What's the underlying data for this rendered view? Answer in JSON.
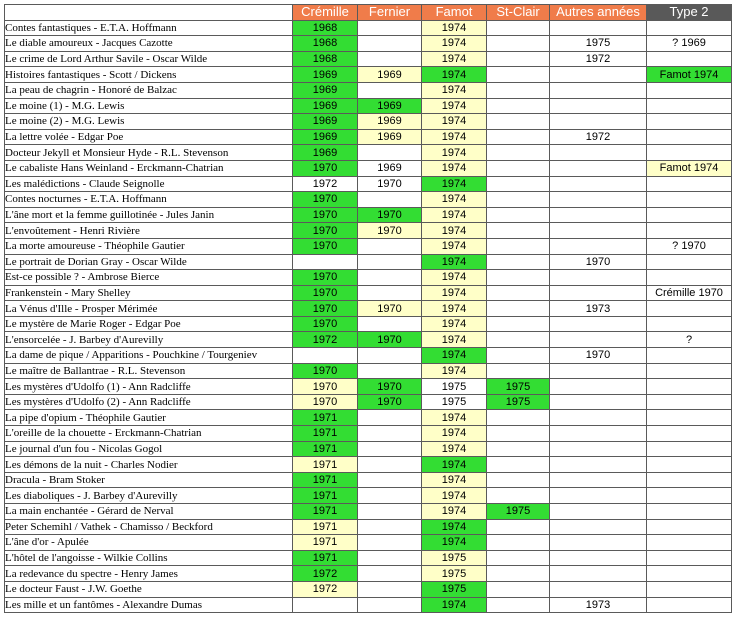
{
  "colors": {
    "header_orange": "#f07c4a",
    "header_dark": "#595959",
    "green": "#33dd33",
    "yellow": "#ffffc8",
    "white": "#ffffff"
  },
  "columns": [
    {
      "key": "cremille",
      "label": "Crémille",
      "header_color": "header_orange"
    },
    {
      "key": "fernier",
      "label": "Fernier",
      "header_color": "header_orange"
    },
    {
      "key": "famot",
      "label": "Famot",
      "header_color": "header_orange"
    },
    {
      "key": "stclair",
      "label": "St-Clair",
      "header_color": "header_orange"
    },
    {
      "key": "autres",
      "label": "Autres années",
      "header_color": "header_orange"
    },
    {
      "key": "type2",
      "label": "Type 2",
      "header_color": "header_dark"
    }
  ],
  "rows": [
    {
      "title": "Contes fantastiques - E.T.A. Hoffmann",
      "cells": [
        [
          "1968",
          "green"
        ],
        [
          "",
          "white"
        ],
        [
          "1974",
          "yellow"
        ],
        [
          "",
          "white"
        ],
        [
          "",
          "white"
        ],
        [
          "",
          "white"
        ]
      ]
    },
    {
      "title": "Le diable amoureux - Jacques Cazotte",
      "cells": [
        [
          "1968",
          "green"
        ],
        [
          "",
          "white"
        ],
        [
          "1974",
          "yellow"
        ],
        [
          "",
          "white"
        ],
        [
          "1975",
          "white"
        ],
        [
          "? 1969",
          "white"
        ]
      ]
    },
    {
      "title": "Le crime de Lord Arthur Savile - Oscar Wilde",
      "cells": [
        [
          "1968",
          "green"
        ],
        [
          "",
          "white"
        ],
        [
          "1974",
          "yellow"
        ],
        [
          "",
          "white"
        ],
        [
          "1972",
          "white"
        ],
        [
          "",
          "white"
        ]
      ]
    },
    {
      "title": "Histoires fantastiques - Scott / Dickens",
      "cells": [
        [
          "1969",
          "green"
        ],
        [
          "1969",
          "yellow"
        ],
        [
          "1974",
          "green"
        ],
        [
          "",
          "white"
        ],
        [
          "",
          "white"
        ],
        [
          "Famot 1974",
          "green"
        ]
      ]
    },
    {
      "title": "La peau de chagrin - Honoré de Balzac",
      "cells": [
        [
          "1969",
          "green"
        ],
        [
          "",
          "white"
        ],
        [
          "1974",
          "yellow"
        ],
        [
          "",
          "white"
        ],
        [
          "",
          "white"
        ],
        [
          "",
          "white"
        ]
      ]
    },
    {
      "title": "Le moine (1) - M.G. Lewis",
      "cells": [
        [
          "1969",
          "green"
        ],
        [
          "1969",
          "green"
        ],
        [
          "1974",
          "yellow"
        ],
        [
          "",
          "white"
        ],
        [
          "",
          "white"
        ],
        [
          "",
          "white"
        ]
      ]
    },
    {
      "title": "Le moine (2) - M.G. Lewis",
      "cells": [
        [
          "1969",
          "green"
        ],
        [
          "1969",
          "yellow"
        ],
        [
          "1974",
          "yellow"
        ],
        [
          "",
          "white"
        ],
        [
          "",
          "white"
        ],
        [
          "",
          "white"
        ]
      ]
    },
    {
      "title": "La lettre volée - Edgar Poe",
      "cells": [
        [
          "1969",
          "green"
        ],
        [
          "1969",
          "yellow"
        ],
        [
          "1974",
          "yellow"
        ],
        [
          "",
          "white"
        ],
        [
          "1972",
          "white"
        ],
        [
          "",
          "white"
        ]
      ]
    },
    {
      "title": "Docteur Jekyll et Monsieur Hyde - R.L. Stevenson",
      "cells": [
        [
          "1969",
          "green"
        ],
        [
          "",
          "white"
        ],
        [
          "1974",
          "yellow"
        ],
        [
          "",
          "white"
        ],
        [
          "",
          "white"
        ],
        [
          "",
          "white"
        ]
      ]
    },
    {
      "title": "Le cabaliste Hans Weinland - Erckmann-Chatrian",
      "cells": [
        [
          "1970",
          "green"
        ],
        [
          "1969",
          "white"
        ],
        [
          "1974",
          "yellow"
        ],
        [
          "",
          "white"
        ],
        [
          "",
          "white"
        ],
        [
          "Famot 1974",
          "yellow"
        ]
      ]
    },
    {
      "title": "Les malédictions - Claude Seignolle",
      "cells": [
        [
          "1972",
          "white"
        ],
        [
          "1970",
          "white"
        ],
        [
          "1974",
          "green"
        ],
        [
          "",
          "white"
        ],
        [
          "",
          "white"
        ],
        [
          "",
          "white"
        ]
      ]
    },
    {
      "title": "Contes nocturnes - E.T.A. Hoffmann",
      "cells": [
        [
          "1970",
          "green"
        ],
        [
          "",
          "white"
        ],
        [
          "1974",
          "yellow"
        ],
        [
          "",
          "white"
        ],
        [
          "",
          "white"
        ],
        [
          "",
          "white"
        ]
      ]
    },
    {
      "title": "L'âne mort et la femme guillotinée - Jules Janin",
      "cells": [
        [
          "1970",
          "green"
        ],
        [
          "1970",
          "green"
        ],
        [
          "1974",
          "yellow"
        ],
        [
          "",
          "white"
        ],
        [
          "",
          "white"
        ],
        [
          "",
          "white"
        ]
      ]
    },
    {
      "title": "L'envoûtement - Henri Rivière",
      "cells": [
        [
          "1970",
          "green"
        ],
        [
          "1970",
          "yellow"
        ],
        [
          "1974",
          "yellow"
        ],
        [
          "",
          "white"
        ],
        [
          "",
          "white"
        ],
        [
          "",
          "white"
        ]
      ]
    },
    {
      "title": "La morte amoureuse - Théophile Gautier",
      "cells": [
        [
          "1970",
          "green"
        ],
        [
          "",
          "white"
        ],
        [
          "1974",
          "yellow"
        ],
        [
          "",
          "white"
        ],
        [
          "",
          "white"
        ],
        [
          "? 1970",
          "white"
        ]
      ]
    },
    {
      "title": "Le portrait de Dorian Gray - Oscar Wilde",
      "cells": [
        [
          "",
          "white"
        ],
        [
          "",
          "white"
        ],
        [
          "1974",
          "green"
        ],
        [
          "",
          "white"
        ],
        [
          "1970",
          "white"
        ],
        [
          "",
          "white"
        ]
      ]
    },
    {
      "title": "Est-ce possible ? - Ambrose Bierce",
      "cells": [
        [
          "1970",
          "green"
        ],
        [
          "",
          "white"
        ],
        [
          "1974",
          "yellow"
        ],
        [
          "",
          "white"
        ],
        [
          "",
          "white"
        ],
        [
          "",
          "white"
        ]
      ]
    },
    {
      "title": "Frankenstein - Mary Shelley",
      "cells": [
        [
          "1970",
          "green"
        ],
        [
          "",
          "white"
        ],
        [
          "1974",
          "yellow"
        ],
        [
          "",
          "white"
        ],
        [
          "",
          "white"
        ],
        [
          "Crémille 1970",
          "white"
        ]
      ]
    },
    {
      "title": "La Vénus d'Ille - Prosper Mérimée",
      "cells": [
        [
          "1970",
          "green"
        ],
        [
          "1970",
          "yellow"
        ],
        [
          "1974",
          "yellow"
        ],
        [
          "",
          "white"
        ],
        [
          "1973",
          "white"
        ],
        [
          "",
          "white"
        ]
      ]
    },
    {
      "title": "Le mystère de Marie Roger - Edgar Poe",
      "cells": [
        [
          "1970",
          "green"
        ],
        [
          "",
          "white"
        ],
        [
          "1974",
          "yellow"
        ],
        [
          "",
          "white"
        ],
        [
          "",
          "white"
        ],
        [
          "",
          "white"
        ]
      ]
    },
    {
      "title": "L'ensorcelée - J. Barbey d'Aurevilly",
      "cells": [
        [
          "1972",
          "green"
        ],
        [
          "1970",
          "green"
        ],
        [
          "1974",
          "yellow"
        ],
        [
          "",
          "white"
        ],
        [
          "",
          "white"
        ],
        [
          "?",
          "white"
        ]
      ]
    },
    {
      "title": "La dame de pique / Apparitions - Pouchkine / Tourgeniev",
      "cells": [
        [
          "",
          "white"
        ],
        [
          "",
          "white"
        ],
        [
          "1974",
          "green"
        ],
        [
          "",
          "white"
        ],
        [
          "1970",
          "white"
        ],
        [
          "",
          "white"
        ]
      ]
    },
    {
      "title": "Le maître de Ballantrae - R.L. Stevenson",
      "cells": [
        [
          "1970",
          "green"
        ],
        [
          "",
          "white"
        ],
        [
          "1974",
          "yellow"
        ],
        [
          "",
          "white"
        ],
        [
          "",
          "white"
        ],
        [
          "",
          "white"
        ]
      ]
    },
    {
      "title": "Les mystères d'Udolfo (1) - Ann Radcliffe",
      "cells": [
        [
          "1970",
          "yellow"
        ],
        [
          "1970",
          "green"
        ],
        [
          "1975",
          "white"
        ],
        [
          "1975",
          "green"
        ],
        [
          "",
          "white"
        ],
        [
          "",
          "white"
        ]
      ]
    },
    {
      "title": "Les mystères d'Udolfo (2) - Ann Radcliffe",
      "cells": [
        [
          "1970",
          "yellow"
        ],
        [
          "1970",
          "green"
        ],
        [
          "1975",
          "white"
        ],
        [
          "1975",
          "green"
        ],
        [
          "",
          "white"
        ],
        [
          "",
          "white"
        ]
      ]
    },
    {
      "title": "La pipe d'opium - Théophile Gautier",
      "cells": [
        [
          "1971",
          "green"
        ],
        [
          "",
          "white"
        ],
        [
          "1974",
          "yellow"
        ],
        [
          "",
          "white"
        ],
        [
          "",
          "white"
        ],
        [
          "",
          "white"
        ]
      ]
    },
    {
      "title": "L'oreille de la chouette - Erckmann-Chatrian",
      "cells": [
        [
          "1971",
          "green"
        ],
        [
          "",
          "white"
        ],
        [
          "1974",
          "yellow"
        ],
        [
          "",
          "white"
        ],
        [
          "",
          "white"
        ],
        [
          "",
          "white"
        ]
      ]
    },
    {
      "title": "Le journal d'un fou - Nicolas Gogol",
      "cells": [
        [
          "1971",
          "green"
        ],
        [
          "",
          "white"
        ],
        [
          "1974",
          "yellow"
        ],
        [
          "",
          "white"
        ],
        [
          "",
          "white"
        ],
        [
          "",
          "white"
        ]
      ]
    },
    {
      "title": "Les démons de la nuit - Charles Nodier",
      "cells": [
        [
          "1971",
          "yellow"
        ],
        [
          "",
          "white"
        ],
        [
          "1974",
          "green"
        ],
        [
          "",
          "white"
        ],
        [
          "",
          "white"
        ],
        [
          "",
          "white"
        ]
      ]
    },
    {
      "title": "Dracula - Bram Stoker",
      "cells": [
        [
          "1971",
          "green"
        ],
        [
          "",
          "white"
        ],
        [
          "1974",
          "yellow"
        ],
        [
          "",
          "white"
        ],
        [
          "",
          "white"
        ],
        [
          "",
          "white"
        ]
      ]
    },
    {
      "title": "Les diaboliques - J. Barbey d'Aurevilly",
      "cells": [
        [
          "1971",
          "green"
        ],
        [
          "",
          "white"
        ],
        [
          "1974",
          "yellow"
        ],
        [
          "",
          "white"
        ],
        [
          "",
          "white"
        ],
        [
          "",
          "white"
        ]
      ]
    },
    {
      "title": "La main enchantée - Gérard de Nerval",
      "cells": [
        [
          "1971",
          "green"
        ],
        [
          "",
          "white"
        ],
        [
          "1974",
          "yellow"
        ],
        [
          "1975",
          "green"
        ],
        [
          "",
          "white"
        ],
        [
          "",
          "white"
        ]
      ]
    },
    {
      "title": "Peter Schemihl / Vathek - Chamisso / Beckford",
      "cells": [
        [
          "1971",
          "yellow"
        ],
        [
          "",
          "white"
        ],
        [
          "1974",
          "green"
        ],
        [
          "",
          "white"
        ],
        [
          "",
          "white"
        ],
        [
          "",
          "white"
        ]
      ]
    },
    {
      "title": "L'âne d'or - Apulée",
      "cells": [
        [
          "1971",
          "yellow"
        ],
        [
          "",
          "white"
        ],
        [
          "1974",
          "green"
        ],
        [
          "",
          "white"
        ],
        [
          "",
          "white"
        ],
        [
          "",
          "white"
        ]
      ]
    },
    {
      "title": "L'hôtel de l'angoisse - Wilkie Collins",
      "cells": [
        [
          "1971",
          "green"
        ],
        [
          "",
          "white"
        ],
        [
          "1975",
          "yellow"
        ],
        [
          "",
          "white"
        ],
        [
          "",
          "white"
        ],
        [
          "",
          "white"
        ]
      ]
    },
    {
      "title": "La redevance du spectre - Henry James",
      "cells": [
        [
          "1972",
          "green"
        ],
        [
          "",
          "white"
        ],
        [
          "1975",
          "yellow"
        ],
        [
          "",
          "white"
        ],
        [
          "",
          "white"
        ],
        [
          "",
          "white"
        ]
      ]
    },
    {
      "title": "Le docteur Faust - J.W. Goethe",
      "cells": [
        [
          "1972",
          "yellow"
        ],
        [
          "",
          "white"
        ],
        [
          "1975",
          "green"
        ],
        [
          "",
          "white"
        ],
        [
          "",
          "white"
        ],
        [
          "",
          "white"
        ]
      ]
    },
    {
      "title": "Les mille et un fantômes - Alexandre Dumas",
      "cells": [
        [
          "",
          "white"
        ],
        [
          "",
          "white"
        ],
        [
          "1974",
          "green"
        ],
        [
          "",
          "white"
        ],
        [
          "1973",
          "white"
        ],
        [
          "",
          "white"
        ]
      ]
    }
  ]
}
